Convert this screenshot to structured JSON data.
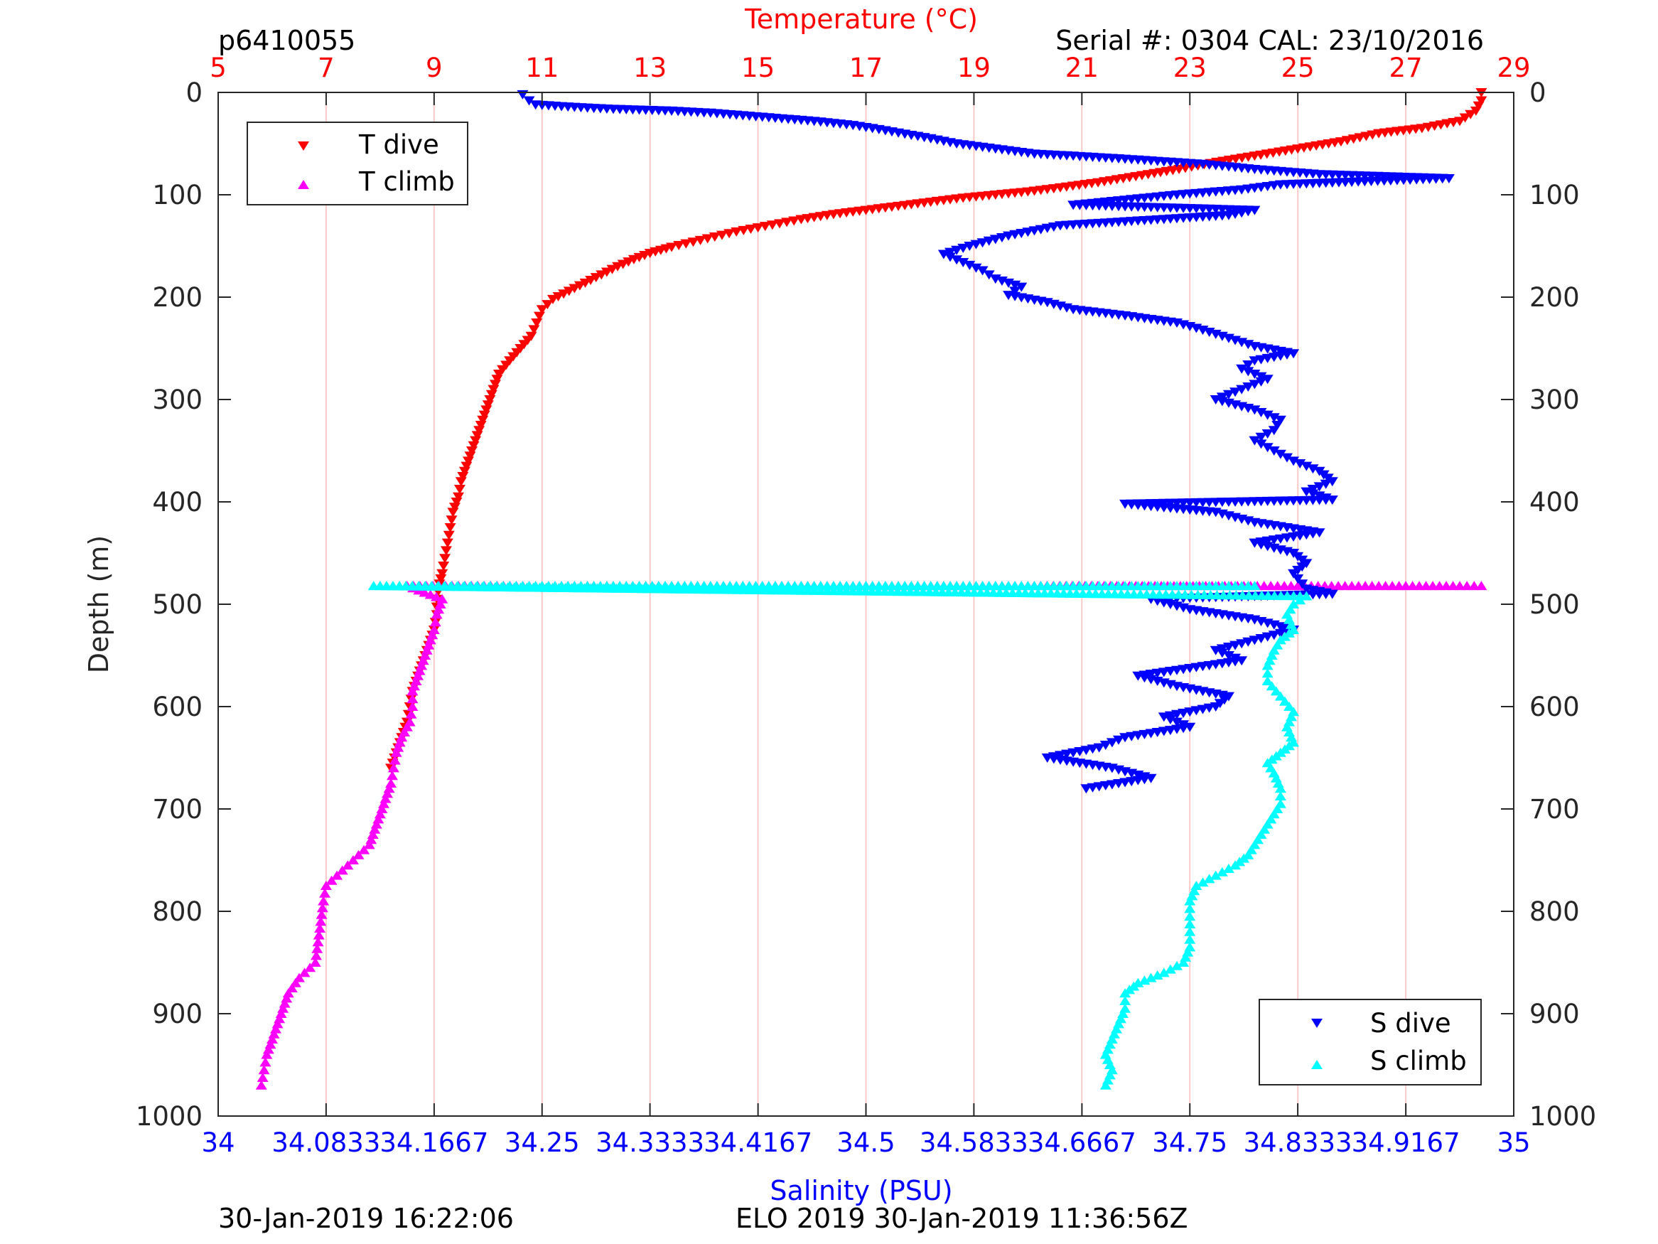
{
  "header": {
    "profile_id": "p6410055",
    "serial_cal": "Serial #: 0304  CAL: 23/10/2016",
    "top_axis_label": "Temperature (°C)",
    "bottom_axis_label": "Salinity (PSU)",
    "left_axis_label": "Depth (m)"
  },
  "footer": {
    "plot_time": "30-Jan-2019 16:22:06",
    "mission": "ELO 2019 30-Jan-2019 11:36:56Z"
  },
  "legend_t": {
    "dive": "T dive",
    "climb": "T climb"
  },
  "legend_s": {
    "dive": "S dive",
    "climb": "S climb"
  },
  "colors": {
    "t_dive": "#ff0000",
    "t_climb": "#ff00ff",
    "s_dive": "#0000ff",
    "s_climb": "#00ffff",
    "temp_axis": "#ff0000",
    "sal_axis": "#0000ff",
    "grid": "#ffbbbb"
  },
  "chart_data": {
    "type": "scatter",
    "depth_axis": {
      "label": "Depth (m)",
      "ylim": [
        0,
        1000
      ],
      "reversed": true,
      "ticks": [
        0,
        100,
        200,
        300,
        400,
        500,
        600,
        700,
        800,
        900,
        1000
      ]
    },
    "temperature_axis": {
      "label": "Temperature (°C)",
      "position": "top",
      "xlim": [
        5,
        29
      ],
      "ticks": [
        5,
        7,
        9,
        11,
        13,
        15,
        17,
        19,
        21,
        23,
        25,
        27,
        29
      ],
      "grid": true
    },
    "salinity_axis": {
      "label": "Salinity (PSU)",
      "position": "bottom",
      "xlim": [
        34,
        35
      ],
      "ticks": [
        "34",
        "34.0833",
        "34.1667",
        "34.25",
        "34.3333",
        "34.4167",
        "34.5",
        "34.5833",
        "34.6667",
        "34.75",
        "34.8333",
        "34.9167",
        "35"
      ]
    },
    "series": [
      {
        "name": "T dive",
        "axis": "temperature",
        "marker": "triangle-down",
        "points": [
          [
            28.4,
            0
          ],
          [
            28.4,
            8
          ],
          [
            28.3,
            18
          ],
          [
            28.0,
            28
          ],
          [
            27.3,
            35
          ],
          [
            26.5,
            40
          ],
          [
            25.8,
            48
          ],
          [
            25.0,
            55
          ],
          [
            24.2,
            62
          ],
          [
            23.5,
            68
          ],
          [
            22.8,
            75
          ],
          [
            22.0,
            82
          ],
          [
            21.3,
            88
          ],
          [
            20.6,
            93
          ],
          [
            20.0,
            97
          ],
          [
            19.4,
            100
          ],
          [
            18.8,
            103
          ],
          [
            18.2,
            107
          ],
          [
            17.6,
            111
          ],
          [
            17.0,
            115
          ],
          [
            16.4,
            119
          ],
          [
            15.8,
            124
          ],
          [
            15.4,
            128
          ],
          [
            15.0,
            132
          ],
          [
            14.6,
            136
          ],
          [
            14.2,
            141
          ],
          [
            13.8,
            146
          ],
          [
            13.4,
            151
          ],
          [
            13.0,
            157
          ],
          [
            12.7,
            163
          ],
          [
            12.4,
            170
          ],
          [
            12.1,
            178
          ],
          [
            11.8,
            186
          ],
          [
            11.5,
            194
          ],
          [
            11.2,
            202
          ],
          [
            11.0,
            212
          ],
          [
            10.9,
            225
          ],
          [
            10.8,
            238
          ],
          [
            10.6,
            250
          ],
          [
            10.4,
            262
          ],
          [
            10.2,
            275
          ],
          [
            10.1,
            290
          ],
          [
            10.0,
            305
          ],
          [
            9.9,
            320
          ],
          [
            9.8,
            335
          ],
          [
            9.7,
            350
          ],
          [
            9.6,
            365
          ],
          [
            9.5,
            380
          ],
          [
            9.45,
            395
          ],
          [
            9.35,
            410
          ],
          [
            9.3,
            425
          ],
          [
            9.25,
            440
          ],
          [
            9.2,
            455
          ],
          [
            9.15,
            470
          ],
          [
            9.1,
            480
          ],
          [
            9.05,
            495
          ],
          [
            9.05,
            510
          ],
          [
            9.0,
            525
          ],
          [
            8.9,
            540
          ],
          [
            8.8,
            555
          ],
          [
            8.7,
            570
          ],
          [
            8.6,
            585
          ],
          [
            8.55,
            600
          ],
          [
            8.5,
            615
          ],
          [
            8.4,
            630
          ],
          [
            8.3,
            645
          ],
          [
            8.2,
            660
          ]
        ]
      },
      {
        "name": "T climb",
        "axis": "temperature",
        "marker": "triangle-up",
        "points": [
          [
            5.8,
            970
          ],
          [
            5.85,
            955
          ],
          [
            5.9,
            940
          ],
          [
            6.0,
            925
          ],
          [
            6.1,
            910
          ],
          [
            6.2,
            895
          ],
          [
            6.3,
            880
          ],
          [
            6.5,
            865
          ],
          [
            6.8,
            850
          ],
          [
            6.85,
            830
          ],
          [
            6.9,
            810
          ],
          [
            6.95,
            790
          ],
          [
            7.0,
            775
          ],
          [
            7.2,
            765
          ],
          [
            7.4,
            755
          ],
          [
            7.6,
            745
          ],
          [
            7.8,
            735
          ],
          [
            7.9,
            720
          ],
          [
            8.0,
            705
          ],
          [
            8.1,
            690
          ],
          [
            8.2,
            675
          ],
          [
            8.25,
            660
          ],
          [
            8.3,
            645
          ],
          [
            8.4,
            630
          ],
          [
            8.55,
            615
          ],
          [
            8.6,
            600
          ],
          [
            8.6,
            585
          ],
          [
            8.7,
            570
          ],
          [
            8.8,
            555
          ],
          [
            8.9,
            540
          ],
          [
            9.0,
            525
          ],
          [
            9.05,
            510
          ],
          [
            9.15,
            495
          ],
          [
            8.5,
            482
          ],
          [
            11.0,
            482
          ],
          [
            14.0,
            482
          ],
          [
            17.0,
            482
          ],
          [
            20.0,
            482
          ],
          [
            22.0,
            482
          ],
          [
            24.0,
            482
          ],
          [
            25.0,
            482
          ],
          [
            25.5,
            482
          ],
          [
            26.0,
            482
          ],
          [
            26.5,
            482
          ],
          [
            27.0,
            482
          ],
          [
            27.5,
            482
          ],
          [
            28.0,
            482
          ],
          [
            28.4,
            482
          ]
        ]
      },
      {
        "name": "S dive",
        "axis": "salinity",
        "marker": "triangle-down",
        "points": [
          [
            34.235,
            2
          ],
          [
            34.24,
            8
          ],
          [
            34.245,
            12
          ],
          [
            34.27,
            14
          ],
          [
            34.3,
            16
          ],
          [
            34.35,
            18
          ],
          [
            34.38,
            20
          ],
          [
            34.4,
            22
          ],
          [
            34.43,
            25
          ],
          [
            34.46,
            28
          ],
          [
            34.49,
            32
          ],
          [
            34.51,
            36
          ],
          [
            34.55,
            45
          ],
          [
            34.57,
            50
          ],
          [
            34.6,
            55
          ],
          [
            34.63,
            60
          ],
          [
            34.66,
            62
          ],
          [
            34.7,
            65
          ],
          [
            34.76,
            70
          ],
          [
            34.8,
            75
          ],
          [
            34.85,
            80
          ],
          [
            34.9,
            82
          ],
          [
            34.95,
            84
          ],
          [
            34.82,
            90
          ],
          [
            34.79,
            95
          ],
          [
            34.74,
            100
          ],
          [
            34.7,
            105
          ],
          [
            34.66,
            110
          ],
          [
            34.8,
            115
          ],
          [
            34.78,
            120
          ],
          [
            34.65,
            130
          ],
          [
            34.61,
            140
          ],
          [
            34.58,
            150
          ],
          [
            34.56,
            158
          ],
          [
            34.575,
            166
          ],
          [
            34.59,
            174
          ],
          [
            34.6,
            182
          ],
          [
            34.62,
            190
          ],
          [
            34.61,
            198
          ],
          [
            34.64,
            205
          ],
          [
            34.66,
            212
          ],
          [
            34.7,
            218
          ],
          [
            34.74,
            225
          ],
          [
            34.76,
            232
          ],
          [
            34.78,
            240
          ],
          [
            34.8,
            248
          ],
          [
            34.83,
            255
          ],
          [
            34.8,
            262
          ],
          [
            34.79,
            270
          ],
          [
            34.81,
            280
          ],
          [
            34.79,
            290
          ],
          [
            34.77,
            300
          ],
          [
            34.8,
            310
          ],
          [
            34.82,
            320
          ],
          [
            34.815,
            330
          ],
          [
            34.8,
            340
          ],
          [
            34.815,
            350
          ],
          [
            34.83,
            360
          ],
          [
            34.85,
            370
          ],
          [
            34.86,
            380
          ],
          [
            34.84,
            390
          ],
          [
            34.86,
            398
          ],
          [
            34.7,
            402
          ],
          [
            34.77,
            410
          ],
          [
            34.8,
            420
          ],
          [
            34.85,
            430
          ],
          [
            34.8,
            440
          ],
          [
            34.83,
            450
          ],
          [
            34.84,
            460
          ],
          [
            34.83,
            470
          ],
          [
            34.84,
            485
          ],
          [
            34.86,
            490
          ],
          [
            34.72,
            495
          ],
          [
            34.75,
            505
          ],
          [
            34.8,
            515
          ],
          [
            34.83,
            525
          ],
          [
            34.8,
            535
          ],
          [
            34.77,
            545
          ],
          [
            34.79,
            555
          ],
          [
            34.71,
            570
          ],
          [
            34.74,
            580
          ],
          [
            34.78,
            590
          ],
          [
            34.77,
            600
          ],
          [
            34.73,
            610
          ],
          [
            34.75,
            620
          ],
          [
            34.7,
            630
          ],
          [
            34.68,
            640
          ],
          [
            34.64,
            650
          ],
          [
            34.69,
            660
          ],
          [
            34.72,
            670
          ],
          [
            34.67,
            680
          ]
        ]
      },
      {
        "name": "S climb",
        "axis": "salinity",
        "marker": "triangle-up",
        "points": [
          [
            34.685,
            970
          ],
          [
            34.69,
            955
          ],
          [
            34.685,
            940
          ],
          [
            34.69,
            925
          ],
          [
            34.695,
            910
          ],
          [
            34.7,
            895
          ],
          [
            34.7,
            880
          ],
          [
            34.71,
            870
          ],
          [
            34.73,
            860
          ],
          [
            34.745,
            850
          ],
          [
            34.75,
            835
          ],
          [
            34.75,
            820
          ],
          [
            34.75,
            805
          ],
          [
            34.75,
            790
          ],
          [
            34.755,
            775
          ],
          [
            34.77,
            765
          ],
          [
            34.785,
            755
          ],
          [
            34.795,
            745
          ],
          [
            34.8,
            735
          ],
          [
            34.805,
            725
          ],
          [
            34.81,
            715
          ],
          [
            34.815,
            705
          ],
          [
            34.82,
            695
          ],
          [
            34.82,
            680
          ],
          [
            34.815,
            665
          ],
          [
            34.81,
            655
          ],
          [
            34.82,
            645
          ],
          [
            34.83,
            635
          ],
          [
            34.825,
            620
          ],
          [
            34.83,
            605
          ],
          [
            34.82,
            590
          ],
          [
            34.81,
            575
          ],
          [
            34.81,
            560
          ],
          [
            34.815,
            545
          ],
          [
            34.82,
            535
          ],
          [
            34.83,
            525
          ],
          [
            34.825,
            510
          ],
          [
            34.83,
            500
          ],
          [
            34.84,
            492
          ],
          [
            34.12,
            482
          ],
          [
            34.2,
            482
          ],
          [
            34.35,
            482
          ],
          [
            34.5,
            482
          ],
          [
            34.6,
            482
          ],
          [
            34.7,
            482
          ],
          [
            34.77,
            482
          ],
          [
            34.8,
            482
          ]
        ]
      }
    ]
  }
}
